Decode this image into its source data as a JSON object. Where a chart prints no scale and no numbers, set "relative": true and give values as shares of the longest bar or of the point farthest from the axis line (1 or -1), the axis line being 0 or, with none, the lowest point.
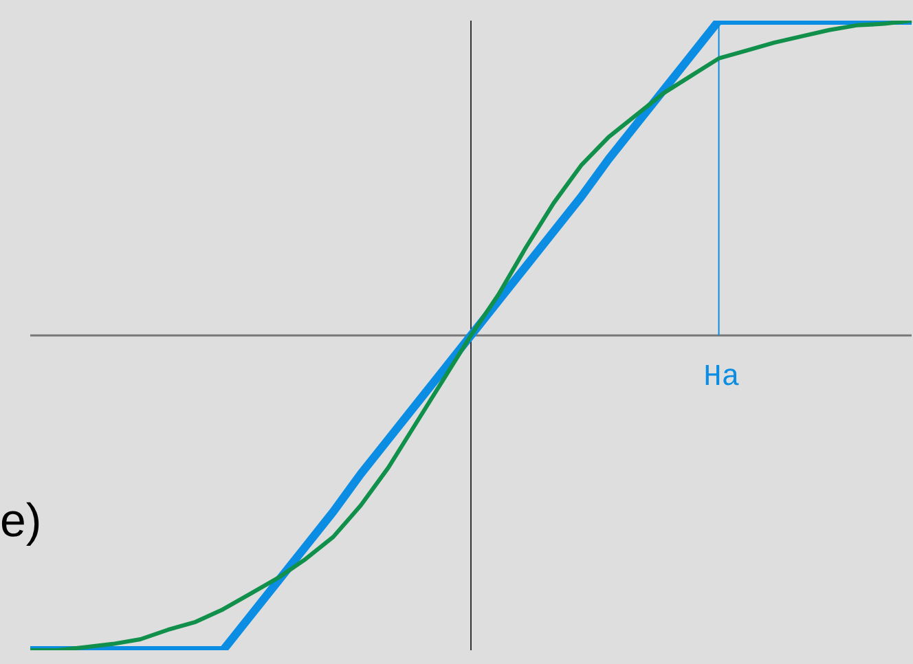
{
  "chart_data": {
    "type": "line",
    "relative": true,
    "marker": "none",
    "categories": [
      null,
      null,
      null,
      null,
      null,
      null,
      null,
      null,
      null,
      null,
      null,
      null,
      null,
      null,
      null,
      null,
      null,
      null,
      null,
      null,
      null,
      null,
      null,
      null,
      null,
      null,
      null,
      null,
      null,
      null,
      null,
      null,
      null
    ],
    "series": [
      {
        "color": "#0b8de3",
        "values": [
          -1,
          -1,
          -1,
          -1,
          -1,
          -1,
          -1,
          -1,
          -0.89,
          -0.78,
          -0.67,
          -0.56,
          -0.44,
          -0.33,
          -0.22,
          -0.11,
          0,
          0.11,
          0.22,
          0.33,
          0.44,
          0.56,
          0.67,
          0.78,
          0.89,
          1,
          1,
          1,
          1,
          1,
          1,
          1,
          1
        ]
      },
      {
        "color": "#10904a",
        "values": [
          -1,
          -1,
          -0.99,
          -0.98,
          -0.965,
          -0.935,
          -0.91,
          -0.87,
          -0.82,
          -0.77,
          -0.71,
          -0.64,
          -0.54,
          -0.42,
          -0.28,
          -0.14,
          0,
          0.13,
          0.28,
          0.42,
          0.54,
          0.63,
          0.7,
          0.77,
          0.825,
          0.88,
          0.905,
          0.93,
          0.95,
          0.97,
          0.985,
          0.99,
          1
        ]
      }
    ],
    "annotations": [
      "Ha",
      "e)"
    ]
  }
}
